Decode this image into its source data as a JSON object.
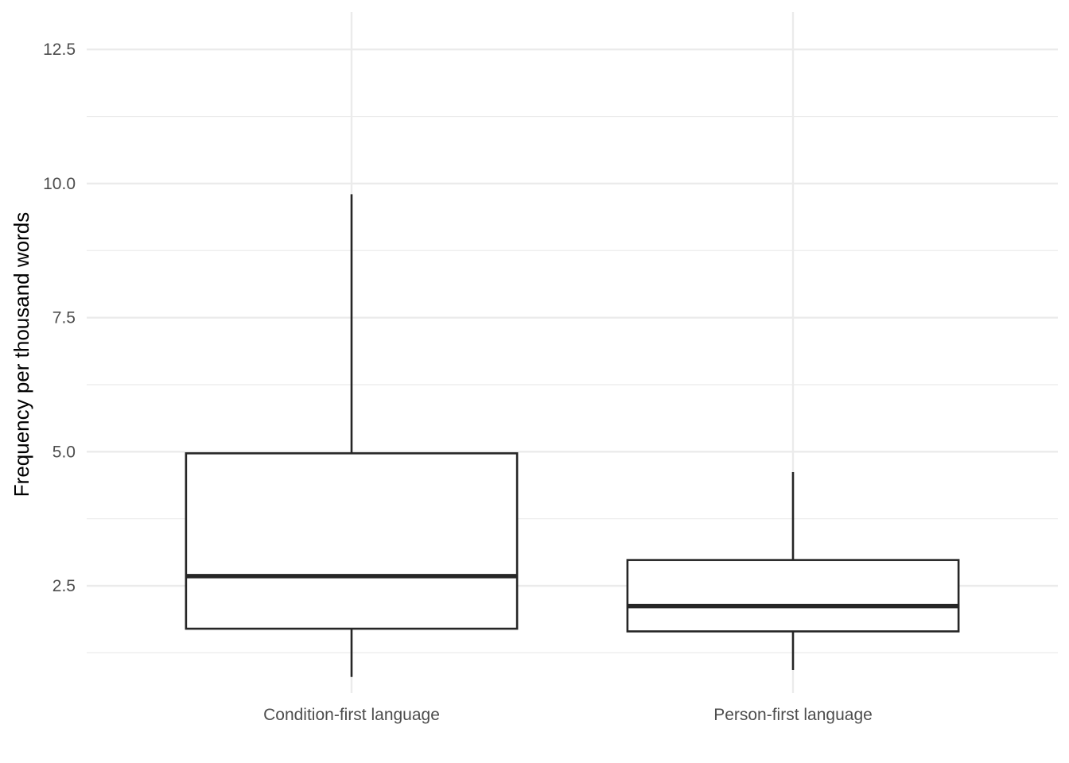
{
  "chart_data": {
    "type": "boxplot",
    "title": "",
    "xlabel": "",
    "ylabel": "Frequency per thousand words",
    "ylim": [
      0.5,
      13.2
    ],
    "yticks": [
      2.5,
      5.0,
      7.5,
      10.0,
      12.5
    ],
    "ytick_labels": [
      "2.5",
      "5.0",
      "7.5",
      "10.0",
      "12.5"
    ],
    "y_minor_gridlines": [
      1.25,
      3.75,
      6.25,
      8.75,
      11.25
    ],
    "grid": true,
    "legend": "none",
    "categories": [
      "Condition-first language",
      "Person-first language"
    ],
    "boxes": [
      {
        "category": "Condition-first language",
        "whisker_low": 0.8,
        "q1": 1.7,
        "median": 2.68,
        "q3": 4.97,
        "whisker_high": 9.8
      },
      {
        "category": "Person-first language",
        "whisker_low": 0.93,
        "q1": 1.65,
        "median": 2.12,
        "q3": 2.98,
        "whisker_high": 4.62
      }
    ],
    "colors": {
      "box_line": "#262626",
      "box_fill": "#ffffff",
      "grid": "#ebebeb",
      "tick_text": "#4d4d4d",
      "axis_title": "#000000"
    }
  }
}
